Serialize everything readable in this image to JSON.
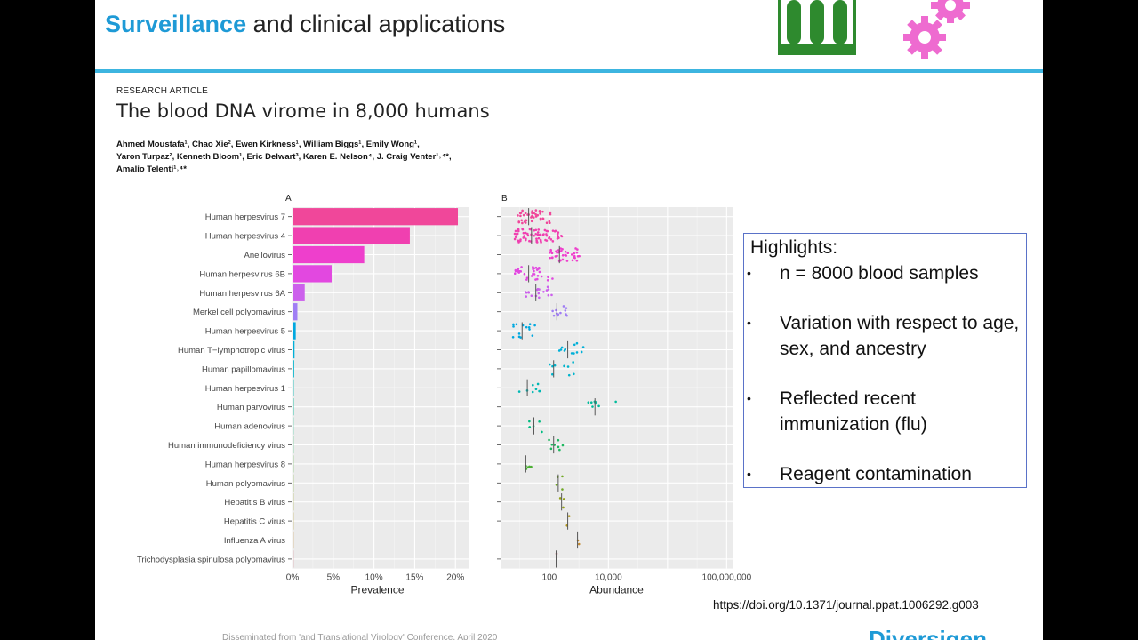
{
  "slide": {
    "title_accent": "Surveillance",
    "title_rest": " and clinical applications"
  },
  "paper": {
    "label": "RESEARCH ARTICLE",
    "title": "The blood DNA virome in 8,000 humans",
    "authors_line1": "Ahmed Moustafa¹, Chao Xie², Ewen Kirkness¹, William Biggs¹, Emily Wong¹,",
    "authors_line2": "Yaron Turpaz², Kenneth Bloom¹, Eric Delwart³, Karen E. Nelson⁴, J. Craig Venter¹˒⁴*,",
    "authors_line3": "Amalio Telenti¹˒⁴*"
  },
  "highlights": {
    "title": "Highlights:",
    "items": [
      {
        "bullet": "•",
        "text": "n = 8000 blood samples"
      },
      {
        "bullet": "•",
        "text": "Variation with respect to age, sex, and ancestry"
      },
      {
        "bullet": "•",
        "text": "Reflected recent immunization (flu)"
      },
      {
        "bullet": "•",
        "text": "Reagent contamination"
      }
    ]
  },
  "doi": "https://doi.org/10.1371/journal.ppat.1006292.g003",
  "footer": {
    "text": "Disseminated from 'and Translational Virology' Conference, April 2020",
    "logo": "Diversigen"
  },
  "chart_data": [
    {
      "type": "bar",
      "panel_label": "A",
      "orientation": "horizontal",
      "categories": [
        "Human herpesvirus 7",
        "Human herpesvirus 4",
        "Anellovirus",
        "Human herpesvirus 6B",
        "Human herpesvirus 6A",
        "Merkel cell polyomavirus",
        "Human herpesvirus 5",
        "Human T−lymphotropic virus",
        "Human papillomavirus",
        "Human herpesvirus 1",
        "Human parvovirus",
        "Human adenovirus",
        "Human immunodeficiency virus",
        "Human herpesvirus 8",
        "Human polyomavirus",
        "Hepatitis B virus",
        "Hepatitis C virus",
        "Influenza A virus",
        "Trichodysplasia spinulosa polyomavirus"
      ],
      "values": [
        20.3,
        14.4,
        8.8,
        4.8,
        1.5,
        0.6,
        0.4,
        0.25,
        0.2,
        0.15,
        0.15,
        0.12,
        0.12,
        0.08,
        0.05,
        0.04,
        0.02,
        0.01,
        0.01
      ],
      "colors": [
        "#f0479a",
        "#f040b0",
        "#ee3fcc",
        "#e248e0",
        "#cc60ec",
        "#a07ef4",
        "#00a8e0",
        "#00b0d8",
        "#00b4cc",
        "#00b8b4",
        "#00bc9c",
        "#00bb80",
        "#20b860",
        "#4cb034",
        "#70a824",
        "#93a018",
        "#b09418",
        "#c48a30",
        "#d07a80"
      ],
      "xlabel": "Prevalence",
      "xticks": [
        "0%",
        "5%",
        "10%",
        "15%",
        "20%"
      ],
      "xlim": [
        0,
        21.5
      ]
    },
    {
      "type": "scatter",
      "panel_label": "B",
      "xlabel": "Abundance",
      "xscale": "log",
      "xticks": [
        "100",
        "10,000",
        "100,000,000"
      ],
      "median_abundance": [
        20,
        25,
        220,
        20,
        35,
        180,
        12,
        420,
        140,
        18,
        3500,
        30,
        140,
        16,
        200,
        260,
        420,
        900,
        170
      ]
    }
  ]
}
